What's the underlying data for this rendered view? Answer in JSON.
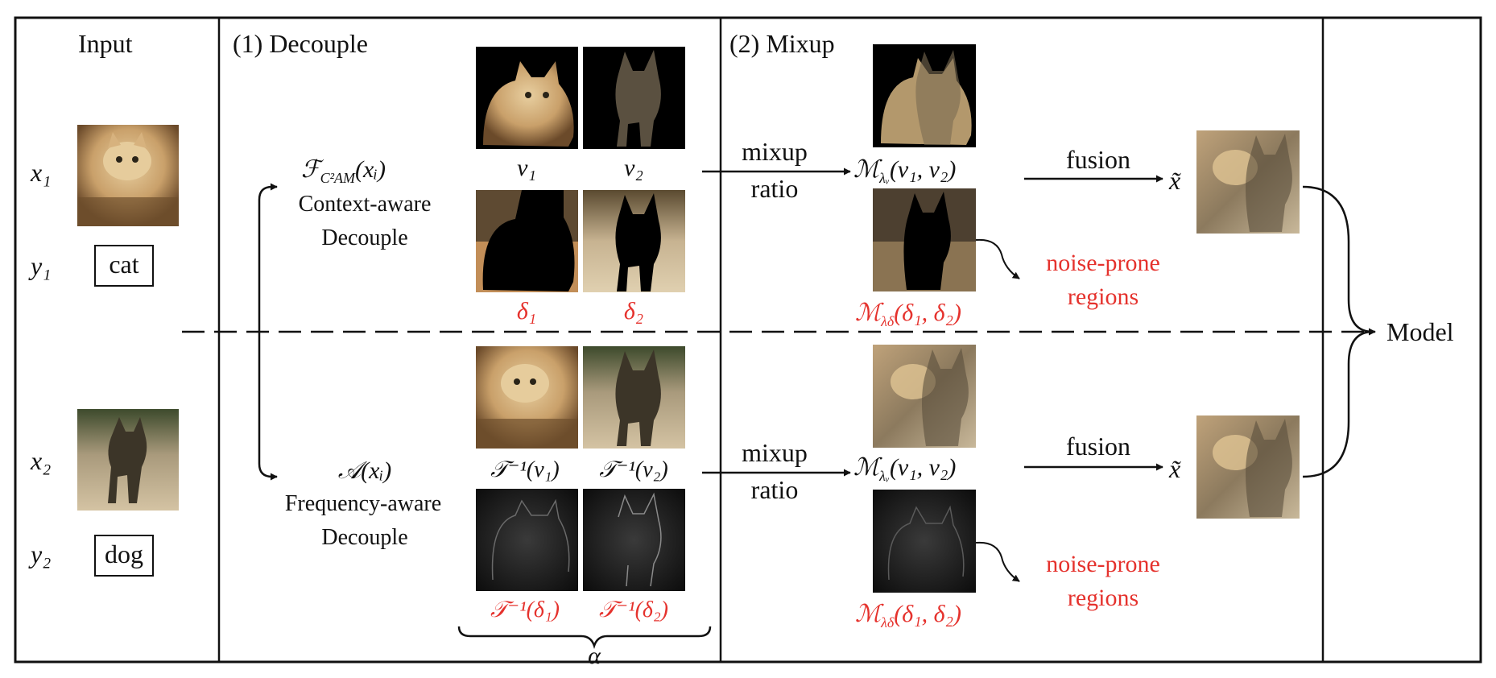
{
  "columns": {
    "input": "Input",
    "decouple": "(1) Decouple",
    "mixup": "(2) Mixup"
  },
  "inputs": {
    "x1": "x₁",
    "y1": "y₁",
    "label1": "cat",
    "x2": "x₂",
    "y2": "y₂",
    "label2": "dog"
  },
  "decouple_top": {
    "func": "ℱC²AM(xᵢ)",
    "func_main": "ℱ",
    "func_sub": "C²AM",
    "func_arg": "(xᵢ)",
    "line1": "Context-aware",
    "line2": "Decouple",
    "v1": "v₁",
    "v2": "v₂",
    "d1": "δ₁",
    "d2": "δ₂"
  },
  "decouple_bottom": {
    "func": "𝒜(xᵢ)",
    "line1": "Frequency-aware",
    "line2": "Decouple",
    "tv1": "𝒯⁻¹(v₁)",
    "tv2": "𝒯⁻¹(v₂)",
    "td1": "𝒯⁻¹(δ₁)",
    "td2": "𝒯⁻¹(δ₂)",
    "alpha": "α"
  },
  "mixup": {
    "mixup_word": "mixup",
    "ratio_word": "ratio",
    "mv_main": "ℳ",
    "mv_sub": "λᵥ",
    "mv_arg": "(v₁, v₂)",
    "md_main": "ℳ",
    "md_sub": "λδ",
    "md_arg": "(δ₁, δ₂)",
    "noise_line1": "noise-prone",
    "noise_line2": "regions",
    "fusion": "fusion",
    "x_tilde": "x̃"
  },
  "output": {
    "model": "Model"
  },
  "colors": {
    "red_accent": "#e5322d",
    "ink": "#111111"
  }
}
